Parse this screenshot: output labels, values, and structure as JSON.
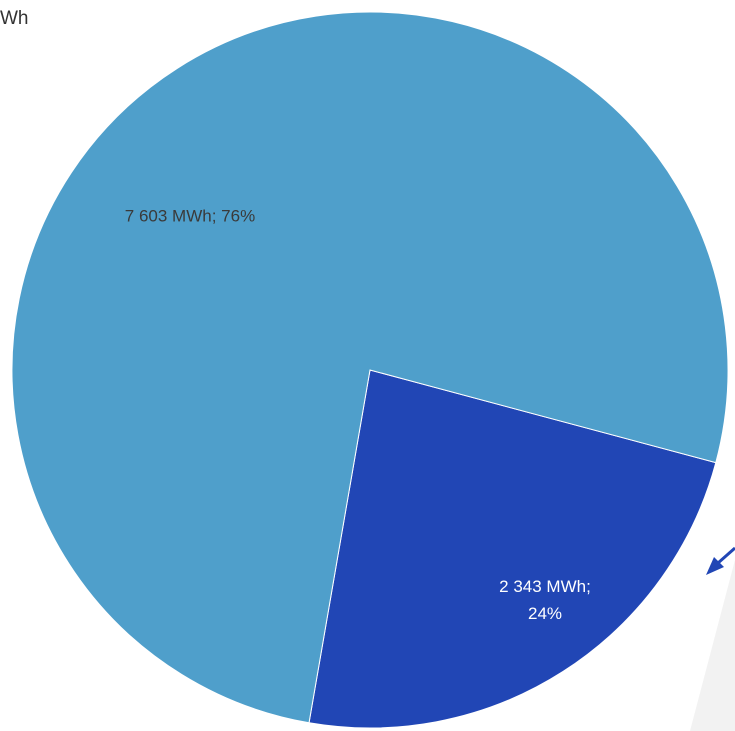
{
  "corner": {
    "line1": "",
    "line2": "Wh"
  },
  "colors": {
    "light": "#4F9FCB",
    "dark": "#2146B5",
    "label_dark": "#3a3a3a",
    "label_light": "#ffffff",
    "arrow": "#2146B5",
    "wedge": "#f2f2f2"
  },
  "chart_data": {
    "type": "pie",
    "title": "",
    "slices": [
      {
        "value": 7603,
        "percent": 76,
        "color": "#4F9FCB",
        "label_lines": [
          "7 603 MWh; 76%"
        ]
      },
      {
        "value": 2343,
        "percent": 24,
        "color": "#2146B5",
        "label_lines": [
          "2 343  MWh;",
          "24%"
        ]
      }
    ]
  }
}
